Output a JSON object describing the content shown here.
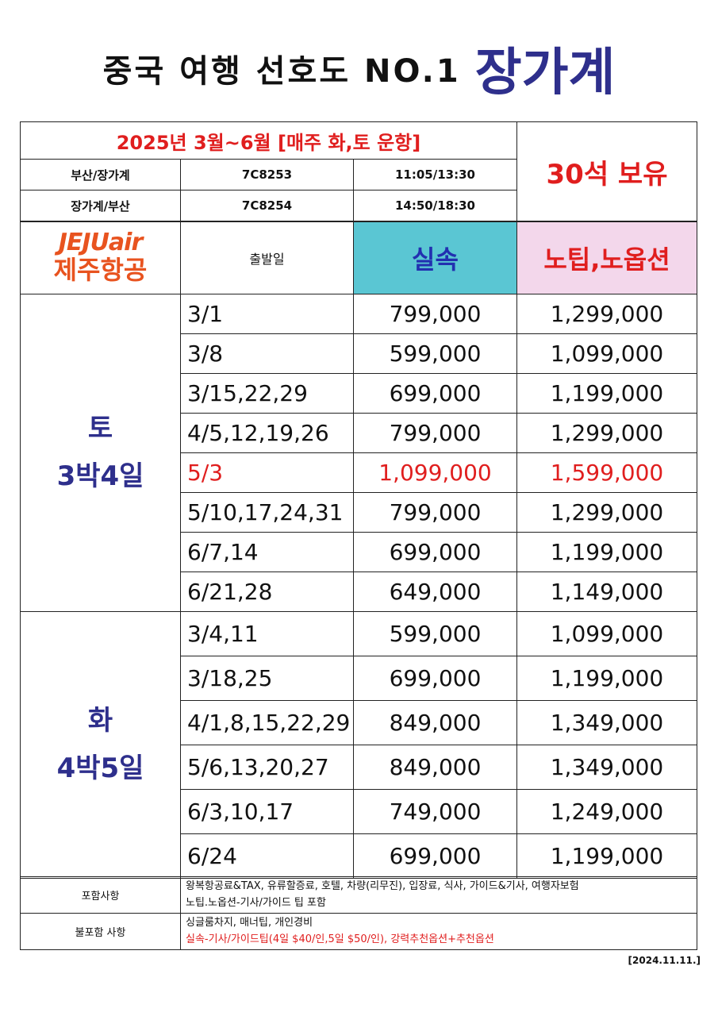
{
  "title": {
    "main": "중국 여행 선호도 NO.1",
    "accent": "장가계"
  },
  "flight": {
    "period": "2025년 3월~6월 [매주 화,토 운항]",
    "seats": "30석 보유",
    "rows": [
      {
        "route": "부산/장가계",
        "code": "7C8253",
        "time": "11:05/13:30"
      },
      {
        "route": "장가계/부산",
        "code": "7C8254",
        "time": "14:50/18:30"
      }
    ]
  },
  "header": {
    "logo_top": "JEJUair",
    "logo_bottom": "제주항공",
    "departure": "출발일",
    "price_real": "실속",
    "price_premium": "노팁,노옵션"
  },
  "groups": [
    {
      "day": "토",
      "duration": "3박4일",
      "rows": [
        {
          "date": "3/1",
          "real": "799,000",
          "premium": "1,299,000"
        },
        {
          "date": "3/8",
          "real": "599,000",
          "premium": "1,099,000"
        },
        {
          "date": "3/15,22,29",
          "real": "699,000",
          "premium": "1,199,000"
        },
        {
          "date": "4/5,12,19,26",
          "real": "799,000",
          "premium": "1,299,000"
        },
        {
          "date": "5/3",
          "real": "1,099,000",
          "premium": "1,599,000",
          "highlight": true
        },
        {
          "date": "5/10,17,24,31",
          "real": "799,000",
          "premium": "1,299,000"
        },
        {
          "date": "6/7,14",
          "real": "699,000",
          "premium": "1,199,000"
        },
        {
          "date": "6/21,28",
          "real": "649,000",
          "premium": "1,149,000"
        }
      ]
    },
    {
      "day": "화",
      "duration": "4박5일",
      "rows": [
        {
          "date": "3/4,11",
          "real": "599,000",
          "premium": "1,099,000"
        },
        {
          "date": "3/18,25",
          "real": "699,000",
          "premium": "1,199,000"
        },
        {
          "date": "4/1,8,15,22,29",
          "real": "849,000",
          "premium": "1,349,000"
        },
        {
          "date": "5/6,13,20,27",
          "real": "849,000",
          "premium": "1,349,000"
        },
        {
          "date": "6/3,10,17",
          "real": "749,000",
          "premium": "1,249,000"
        },
        {
          "date": "6/24",
          "real": "699,000",
          "premium": "1,199,000"
        }
      ]
    }
  ],
  "notes": {
    "included_label": "포함사항",
    "included_line1": "왕복항공료&TAX, 유류할증료, 호텔, 차량(리무진), 입장료, 식사, 가이드&기사, 여행자보험",
    "included_line2": "노팁.노옵션-기사/가이드 팁 포함",
    "excluded_label": "불포함 사항",
    "excluded_line1": "싱글룸차지, 매너팁, 개인경비",
    "excluded_line2": "실속-기사/가이드팁(4일 $40/인,5일 $50/인), 강력추천옵션+추천옵션"
  },
  "date_stamp": "[2024.11.11.]",
  "colors": {
    "navy": "#2e2f8c",
    "red": "#e01e1e",
    "cyan": "#5ac6d3",
    "pink": "#f3d7eb",
    "jeju_orange": "#e8531f"
  }
}
